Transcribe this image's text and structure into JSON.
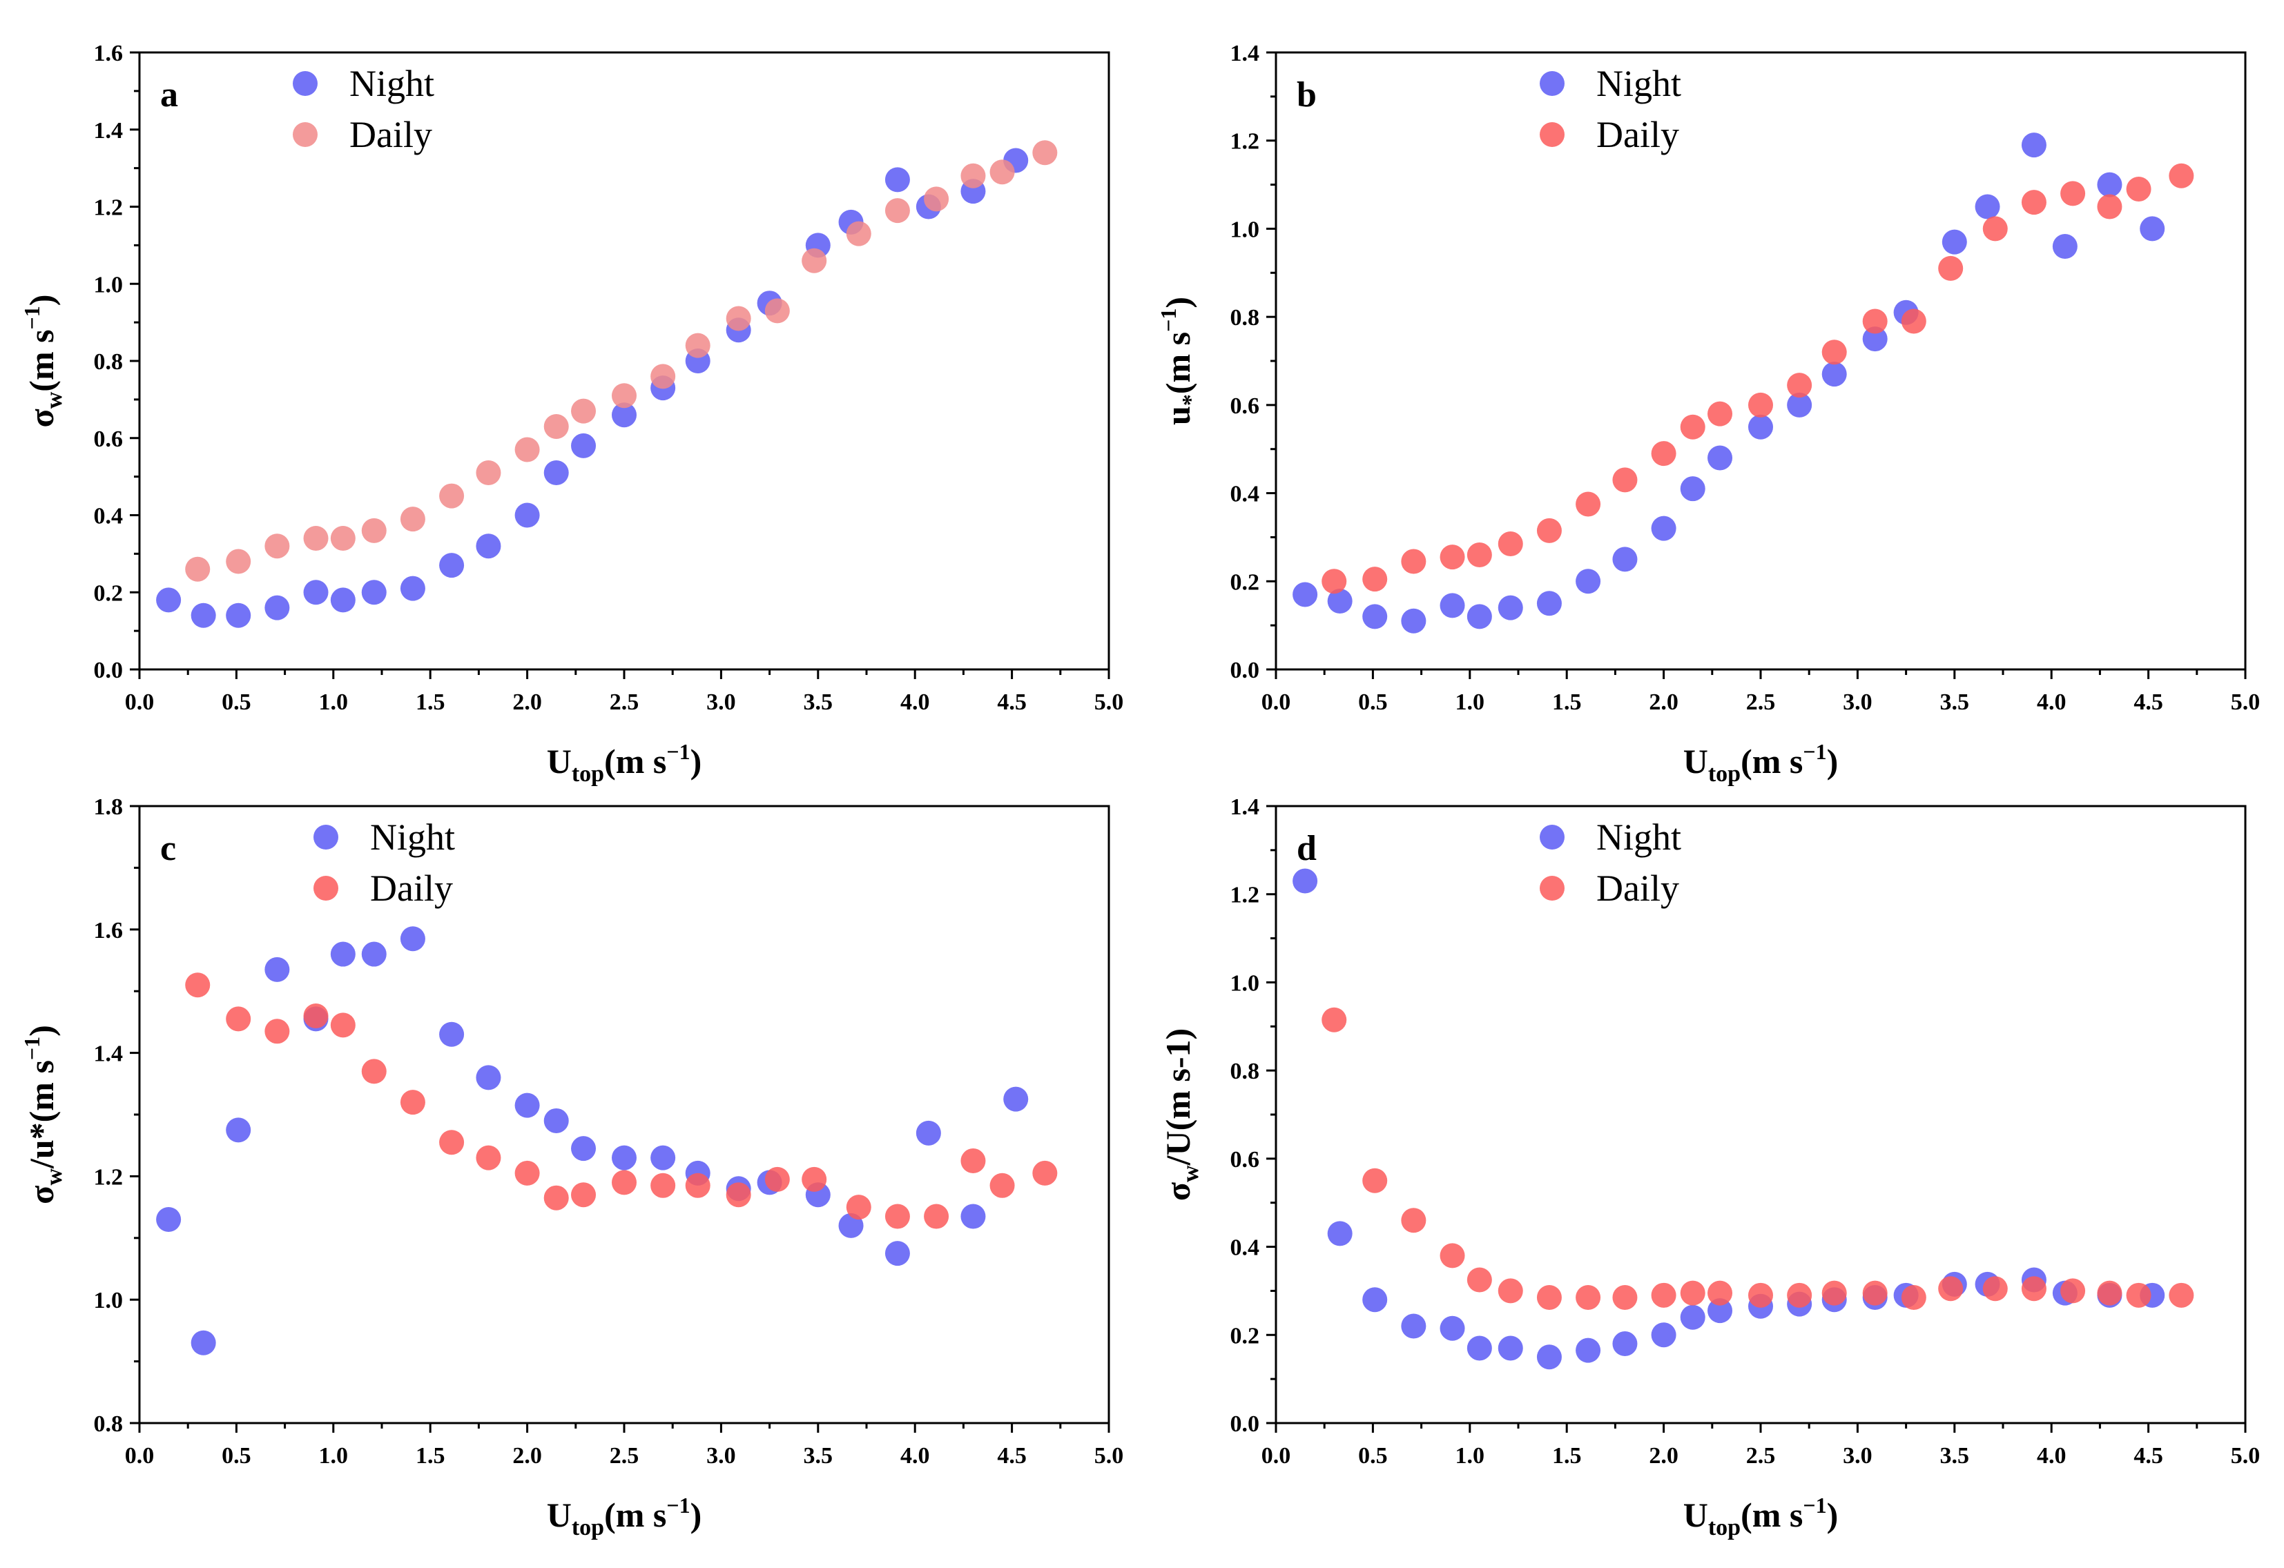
{
  "figure": {
    "title": ""
  },
  "colors": {
    "night": "#5b5bf5",
    "daily_ab": "#f18a8a",
    "daily": "#fb5a5a",
    "axis": "#000000"
  },
  "chart_data": [
    {
      "id": "a",
      "type": "scatter",
      "panel_label": "a",
      "title": "",
      "xlabel": {
        "base": "U",
        "sub": "top",
        "rest": "(m s",
        "sup": "−1",
        "close": ")"
      },
      "ylabel": {
        "base": "σ",
        "sub": "w",
        "rest": "(m s",
        "sup": "−1",
        "close": ")"
      },
      "xlim": [
        0,
        5
      ],
      "ylim": [
        0,
        1.6
      ],
      "xticks": [
        0.0,
        0.5,
        1.0,
        1.5,
        2.0,
        2.5,
        3.0,
        3.5,
        4.0,
        4.5,
        5.0
      ],
      "yticks": [
        0.0,
        0.2,
        0.4,
        0.6,
        0.8,
        1.0,
        1.2,
        1.4,
        1.6
      ],
      "y_decimals": 1,
      "legend": {
        "position": "top-left",
        "entries": [
          "Night",
          "Daily"
        ]
      },
      "series": [
        {
          "name": "Night",
          "color_key": "night",
          "x": [
            0.15,
            0.33,
            0.51,
            0.71,
            0.91,
            1.05,
            1.21,
            1.41,
            1.61,
            1.8,
            2.0,
            2.15,
            2.29,
            2.5,
            2.7,
            2.88,
            3.09,
            3.25,
            3.5,
            3.67,
            3.91,
            4.07,
            4.3,
            4.52
          ],
          "y": [
            0.18,
            0.14,
            0.14,
            0.16,
            0.2,
            0.18,
            0.2,
            0.21,
            0.27,
            0.32,
            0.4,
            0.51,
            0.58,
            0.66,
            0.73,
            0.8,
            0.88,
            0.95,
            1.1,
            1.16,
            1.27,
            1.2,
            1.24,
            1.32
          ]
        },
        {
          "name": "Daily",
          "color_key": "daily_ab",
          "x": [
            0.3,
            0.51,
            0.71,
            0.91,
            1.05,
            1.21,
            1.41,
            1.61,
            1.8,
            2.0,
            2.15,
            2.29,
            2.5,
            2.7,
            2.88,
            3.09,
            3.29,
            3.48,
            3.71,
            3.91,
            4.11,
            4.3,
            4.45,
            4.67
          ],
          "y": [
            0.26,
            0.28,
            0.32,
            0.34,
            0.34,
            0.36,
            0.39,
            0.45,
            0.51,
            0.57,
            0.63,
            0.67,
            0.71,
            0.76,
            0.84,
            0.91,
            0.93,
            1.06,
            1.13,
            1.19,
            1.22,
            1.28,
            1.29,
            1.34
          ]
        }
      ]
    },
    {
      "id": "b",
      "type": "scatter",
      "panel_label": "b",
      "title": "",
      "xlabel": {
        "base": "U",
        "sub": "top",
        "rest": "(m s",
        "sup": "−1",
        "close": ")"
      },
      "ylabel": {
        "base": "u",
        "sub": "*",
        "rest": "(m s",
        "sup": "−1",
        "close": ")"
      },
      "xlim": [
        0,
        5
      ],
      "ylim": [
        0,
        1.4
      ],
      "xticks": [
        0.0,
        0.5,
        1.0,
        1.5,
        2.0,
        2.5,
        3.0,
        3.5,
        4.0,
        4.5,
        5.0
      ],
      "yticks": [
        0.0,
        0.2,
        0.4,
        0.6,
        0.8,
        1.0,
        1.2,
        1.4
      ],
      "y_decimals": 1,
      "legend": {
        "position": "top-left",
        "entries": [
          "Night",
          "Daily"
        ]
      },
      "series": [
        {
          "name": "Night",
          "color_key": "night",
          "x": [
            0.15,
            0.33,
            0.51,
            0.71,
            0.91,
            1.05,
            1.21,
            1.41,
            1.61,
            1.8,
            2.0,
            2.15,
            2.29,
            2.5,
            2.7,
            2.88,
            3.09,
            3.25,
            3.5,
            3.67,
            3.91,
            4.07,
            4.3,
            4.52
          ],
          "y": [
            0.17,
            0.155,
            0.12,
            0.11,
            0.145,
            0.12,
            0.14,
            0.15,
            0.2,
            0.25,
            0.32,
            0.41,
            0.48,
            0.55,
            0.6,
            0.67,
            0.75,
            0.81,
            0.97,
            1.05,
            1.19,
            0.96,
            1.1,
            1.0
          ]
        },
        {
          "name": "Daily",
          "color_key": "daily",
          "x": [
            0.3,
            0.51,
            0.71,
            0.91,
            1.05,
            1.21,
            1.41,
            1.61,
            1.8,
            2.0,
            2.15,
            2.29,
            2.5,
            2.7,
            2.88,
            3.09,
            3.29,
            3.48,
            3.71,
            3.91,
            4.11,
            4.3,
            4.45,
            4.67
          ],
          "y": [
            0.2,
            0.205,
            0.245,
            0.255,
            0.26,
            0.285,
            0.315,
            0.375,
            0.43,
            0.49,
            0.55,
            0.58,
            0.6,
            0.645,
            0.72,
            0.79,
            0.79,
            0.91,
            1.0,
            1.06,
            1.08,
            1.05,
            1.09,
            1.12
          ]
        }
      ]
    },
    {
      "id": "c",
      "type": "scatter",
      "panel_label": "c",
      "title": "",
      "xlabel": {
        "base": "U",
        "sub": "top",
        "rest": "(m s",
        "sup": "−1",
        "close": ")"
      },
      "ylabel": {
        "base": "σ",
        "sub": "w",
        "rest": "/u*(m s",
        "sup": "−1",
        "close": ")"
      },
      "xlim": [
        0,
        5
      ],
      "ylim": [
        0.8,
        1.8
      ],
      "xticks": [
        0.0,
        0.5,
        1.0,
        1.5,
        2.0,
        2.5,
        3.0,
        3.5,
        4.0,
        4.5,
        5.0
      ],
      "yticks": [
        0.8,
        1.0,
        1.2,
        1.4,
        1.6,
        1.8
      ],
      "y_decimals": 1,
      "legend": {
        "position": "top-left",
        "entries": [
          "Night",
          "Daily"
        ]
      },
      "series": [
        {
          "name": "Night",
          "color_key": "night",
          "x": [
            0.15,
            0.33,
            0.51,
            0.71,
            0.91,
            1.05,
            1.21,
            1.41,
            1.61,
            1.8,
            2.0,
            2.15,
            2.29,
            2.5,
            2.7,
            2.88,
            3.09,
            3.25,
            3.5,
            3.67,
            3.91,
            4.07,
            4.3,
            4.52
          ],
          "y": [
            1.13,
            0.93,
            1.275,
            1.535,
            1.455,
            1.56,
            1.56,
            1.585,
            1.43,
            1.36,
            1.315,
            1.29,
            1.245,
            1.23,
            1.23,
            1.205,
            1.18,
            1.19,
            1.17,
            1.12,
            1.075,
            1.27,
            1.135,
            1.325
          ]
        },
        {
          "name": "Daily",
          "color_key": "daily",
          "x": [
            0.3,
            0.51,
            0.71,
            0.91,
            1.05,
            1.21,
            1.41,
            1.61,
            1.8,
            2.0,
            2.15,
            2.29,
            2.5,
            2.7,
            2.88,
            3.09,
            3.29,
            3.48,
            3.71,
            3.91,
            4.11,
            4.3,
            4.45,
            4.67
          ],
          "y": [
            1.51,
            1.455,
            1.435,
            1.46,
            1.445,
            1.37,
            1.32,
            1.255,
            1.23,
            1.205,
            1.165,
            1.17,
            1.19,
            1.185,
            1.185,
            1.17,
            1.195,
            1.195,
            1.15,
            1.135,
            1.135,
            1.225,
            1.185,
            1.205
          ]
        }
      ]
    },
    {
      "id": "d",
      "type": "scatter",
      "panel_label": "d",
      "title": "",
      "xlabel": {
        "base": "U",
        "sub": "top",
        "rest": "(m s",
        "sup": "−1",
        "close": ")"
      },
      "ylabel": {
        "base": "σ",
        "sub": "w",
        "rest": "/U(m s-1)",
        "sup": "",
        "close": ""
      },
      "xlim": [
        0,
        5
      ],
      "ylim": [
        0,
        1.4
      ],
      "xticks": [
        0.0,
        0.5,
        1.0,
        1.5,
        2.0,
        2.5,
        3.0,
        3.5,
        4.0,
        4.5,
        5.0
      ],
      "yticks": [
        0.0,
        0.2,
        0.4,
        0.6,
        0.8,
        1.0,
        1.2,
        1.4
      ],
      "y_decimals": 1,
      "legend": {
        "position": "top-left",
        "entries": [
          "Night",
          "Daily"
        ]
      },
      "series": [
        {
          "name": "Night",
          "color_key": "night",
          "x": [
            0.15,
            0.33,
            0.51,
            0.71,
            0.91,
            1.05,
            1.21,
            1.41,
            1.61,
            1.8,
            2.0,
            2.15,
            2.29,
            2.5,
            2.7,
            2.88,
            3.09,
            3.25,
            3.5,
            3.67,
            3.91,
            4.07,
            4.3,
            4.52
          ],
          "y": [
            1.23,
            0.43,
            0.28,
            0.22,
            0.215,
            0.17,
            0.17,
            0.15,
            0.165,
            0.18,
            0.2,
            0.24,
            0.255,
            0.265,
            0.27,
            0.28,
            0.285,
            0.29,
            0.315,
            0.315,
            0.325,
            0.295,
            0.29,
            0.29
          ]
        },
        {
          "name": "Daily",
          "color_key": "daily",
          "x": [
            0.3,
            0.51,
            0.71,
            0.91,
            1.05,
            1.21,
            1.41,
            1.61,
            1.8,
            2.0,
            2.15,
            2.29,
            2.5,
            2.7,
            2.88,
            3.09,
            3.29,
            3.48,
            3.71,
            3.91,
            4.11,
            4.3,
            4.45,
            4.67
          ],
          "y": [
            0.915,
            0.55,
            0.46,
            0.38,
            0.325,
            0.3,
            0.285,
            0.285,
            0.285,
            0.29,
            0.295,
            0.295,
            0.29,
            0.29,
            0.295,
            0.295,
            0.285,
            0.305,
            0.305,
            0.305,
            0.3,
            0.295,
            0.29,
            0.29
          ]
        }
      ]
    }
  ]
}
